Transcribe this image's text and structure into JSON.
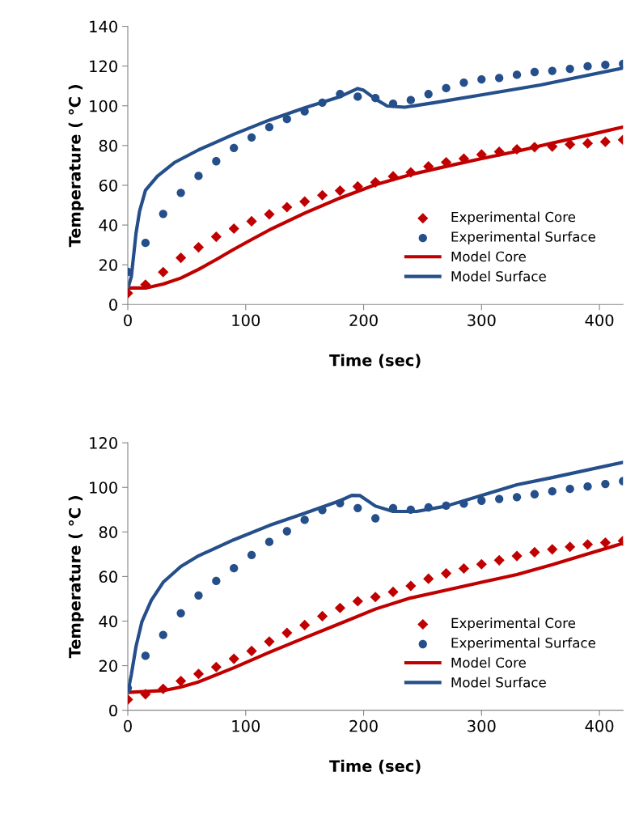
{
  "chart_data": [
    {
      "type": "scatter",
      "xlabel": "Time (sec)",
      "ylabel": "Temperature ( °C )",
      "xlim": [
        0,
        420
      ],
      "ylim": [
        0,
        140
      ],
      "xticks": [
        0,
        100,
        200,
        300,
        400
      ],
      "yticks": [
        0,
        20,
        40,
        60,
        80,
        100,
        120,
        140
      ],
      "grid": false,
      "legend": "lower right",
      "series": [
        {
          "name": "Experimental Core",
          "marker": "diamond",
          "color": "#c00000",
          "x": [
            0,
            15,
            30,
            45,
            60,
            75,
            90,
            105,
            120,
            135,
            150,
            165,
            180,
            195,
            210,
            225,
            240,
            255,
            270,
            285,
            300,
            315,
            330,
            345,
            360,
            375,
            390,
            405,
            420
          ],
          "values": [
            5.7,
            10,
            16.3,
            23.5,
            28.8,
            34.1,
            38.2,
            41.9,
            45.4,
            49,
            51.8,
            55,
            57.3,
            59.4,
            61.5,
            64.5,
            66.5,
            69.5,
            71.6,
            73.4,
            75.5,
            76.9,
            78.1,
            79.2,
            79.5,
            80.6,
            81.1,
            81.9,
            82.9
          ]
        },
        {
          "name": "Experimental Surface",
          "marker": "circle",
          "color": "#254f8a",
          "x": [
            0,
            15,
            30,
            45,
            60,
            75,
            90,
            105,
            120,
            135,
            150,
            165,
            180,
            195,
            210,
            225,
            240,
            255,
            270,
            285,
            300,
            315,
            330,
            345,
            360,
            375,
            390,
            405,
            420
          ],
          "values": [
            16.4,
            31,
            45.6,
            56.2,
            64.7,
            72.1,
            78.8,
            84.1,
            89.3,
            93.3,
            97.2,
            101.6,
            105.9,
            104.6,
            103.9,
            101.1,
            102.9,
            105.9,
            108.9,
            111.7,
            113.3,
            114,
            115.6,
            117,
            117.6,
            118.6,
            119.9,
            120.6,
            121.1
          ]
        },
        {
          "name": "Model Core",
          "type": "line",
          "marker": "none",
          "line_style": "solid",
          "color": "#c00000",
          "x": [
            0,
            15,
            30,
            45,
            60,
            75,
            90,
            105,
            120,
            150,
            180,
            210,
            240,
            270,
            300,
            330,
            360,
            390,
            420
          ],
          "values": [
            8.3,
            8.3,
            10.3,
            13.3,
            17.7,
            22.6,
            27.8,
            32.7,
            37.5,
            46,
            53.6,
            60.3,
            65.4,
            69.5,
            73.4,
            77.1,
            81.3,
            85.2,
            89.3
          ]
        },
        {
          "name": "Model Surface",
          "type": "line",
          "marker": "none",
          "line_style": "solid",
          "color": "#254f8a",
          "x": [
            0,
            3,
            7,
            10,
            15,
            25,
            40,
            60,
            90,
            120,
            150,
            180,
            195,
            200,
            210,
            220,
            235,
            260,
            300,
            350,
            420
          ],
          "values": [
            8,
            14,
            36,
            47,
            57.5,
            64.5,
            71.6,
            77.8,
            85.7,
            92.8,
            99,
            104.6,
            108.7,
            107.8,
            103.4,
            99.9,
            99.3,
            101.6,
            105.5,
            110.5,
            119
          ]
        }
      ]
    },
    {
      "type": "scatter",
      "xlabel": "Time (sec)",
      "ylabel": "Temperature ( °C )",
      "xlim": [
        0,
        420
      ],
      "ylim": [
        0,
        120
      ],
      "xticks": [
        0,
        100,
        200,
        300,
        400
      ],
      "yticks": [
        0,
        20,
        40,
        60,
        80,
        100,
        120
      ],
      "grid": false,
      "legend": "lower right",
      "series": [
        {
          "name": "Experimental Core",
          "marker": "diamond",
          "color": "#c00000",
          "x": [
            0,
            15,
            30,
            45,
            60,
            75,
            90,
            105,
            120,
            135,
            150,
            165,
            180,
            195,
            210,
            225,
            240,
            255,
            270,
            285,
            300,
            315,
            330,
            345,
            360,
            375,
            390,
            405,
            420
          ],
          "values": [
            4.8,
            7.2,
            9.6,
            13.1,
            16.3,
            19.4,
            23.1,
            26.6,
            30.8,
            34.7,
            38.2,
            42.2,
            45.9,
            48.9,
            50.8,
            53.1,
            55.8,
            59,
            61.4,
            63.6,
            65.5,
            67.3,
            69.2,
            70.9,
            72.2,
            73.3,
            74.4,
            75.2,
            76
          ]
        },
        {
          "name": "Experimental Surface",
          "marker": "circle",
          "color": "#254f8a",
          "x": [
            0,
            15,
            30,
            45,
            60,
            75,
            90,
            105,
            120,
            135,
            150,
            165,
            180,
            195,
            210,
            225,
            240,
            255,
            270,
            285,
            300,
            315,
            330,
            345,
            360,
            375,
            390,
            405,
            420
          ],
          "values": [
            10,
            24.4,
            33.8,
            43.5,
            51.5,
            58,
            63.7,
            69.6,
            75.5,
            80.3,
            85.4,
            89.8,
            92.9,
            90.7,
            86.1,
            90.7,
            90,
            91,
            91.8,
            92.7,
            94,
            94.8,
            95.6,
            96.9,
            98.2,
            99.3,
            100.4,
            101.5,
            102.8
          ]
        },
        {
          "name": "Model Core",
          "type": "line",
          "marker": "none",
          "line_style": "solid",
          "color": "#c00000",
          "x": [
            0,
            30,
            45,
            60,
            90,
            120,
            150,
            180,
            210,
            240,
            270,
            300,
            330,
            360,
            390,
            420
          ],
          "values": [
            8,
            8.8,
            10.4,
            12.7,
            19.1,
            26,
            32.5,
            38.9,
            45.4,
            50.4,
            53.9,
            57.4,
            60.9,
            65.3,
            70.1,
            74.9
          ]
        },
        {
          "name": "Model Surface",
          "type": "line",
          "marker": "none",
          "line_style": "solid",
          "color": "#254f8a",
          "x": [
            0,
            3,
            7,
            12,
            20,
            30,
            45,
            60,
            90,
            120,
            150,
            180,
            190,
            197,
            210,
            225,
            245,
            270,
            300,
            330,
            360,
            420
          ],
          "values": [
            8,
            16,
            28.7,
            39.8,
            49.4,
            57.4,
            64.5,
            69.3,
            76.5,
            82.9,
            88.4,
            94,
            96.4,
            96.3,
            91.6,
            89.2,
            89.2,
            91.6,
            96.4,
            101.2,
            104.4,
            111.2
          ]
        }
      ]
    }
  ]
}
